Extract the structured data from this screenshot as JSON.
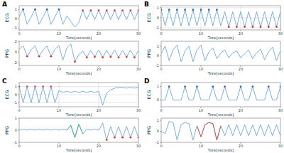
{
  "chart_data": [
    {
      "type": "line",
      "title": "A",
      "ylabel": "ECG",
      "xlabel": "Time[seconds]",
      "x": [
        0,
        1,
        2,
        3,
        4,
        5,
        6,
        7,
        8,
        9,
        10,
        11,
        12,
        13,
        14,
        15,
        16,
        17,
        18,
        19,
        20,
        21,
        22,
        23,
        24,
        25,
        26,
        27,
        28,
        29,
        30
      ],
      "xlim": [
        0,
        30
      ],
      "xticks": [
        0,
        10,
        20,
        30
      ],
      "ylim": [
        -1.2,
        1.4
      ],
      "yticks": [
        -1,
        0,
        1
      ],
      "grid": false,
      "series": [
        {
          "type": "line",
          "color": "#5b9bd5",
          "values": [
            0.2,
            1.0,
            -0.6,
            0.2,
            1.0,
            -0.6,
            0.2,
            1.0,
            -0.6,
            0.2,
            1.0,
            -0.6,
            0.3,
            -0.3,
            -0.9,
            -0.4,
            0.9,
            -0.1,
            0.9,
            -0.1,
            0.9,
            -0.1,
            0.9,
            -0.1,
            0.9,
            -0.1,
            0.9,
            -0.1,
            0.9,
            -0.1,
            0.9
          ]
        },
        {
          "type": "scatter",
          "marker": "circle",
          "color": "#2e6fb5",
          "values": [
            null,
            1.0,
            null,
            null,
            1.0,
            null,
            null,
            1.0,
            null,
            null,
            1.0,
            null,
            null,
            null,
            null,
            null,
            null,
            null,
            null,
            null,
            null,
            null,
            null,
            null,
            null,
            null,
            null,
            null,
            null,
            null,
            null
          ]
        },
        {
          "type": "scatter",
          "marker": "circle",
          "color": "#e8342a",
          "values": [
            null,
            null,
            null,
            null,
            null,
            null,
            null,
            null,
            null,
            null,
            null,
            null,
            null,
            null,
            null,
            null,
            0.9,
            null,
            0.9,
            null,
            0.9,
            null,
            0.9,
            null,
            0.9,
            null,
            0.9,
            null,
            0.9,
            null,
            0.9
          ]
        }
      ]
    },
    {
      "type": "line",
      "ylabel": "PPG",
      "xlabel": "Time[seconds]",
      "x": [
        0,
        1,
        2,
        3,
        4,
        5,
        6,
        7,
        8,
        9,
        10,
        11,
        12,
        13,
        14,
        15,
        16,
        17,
        18,
        19,
        20,
        21,
        22,
        23,
        24,
        25,
        26,
        27,
        28,
        29,
        30
      ],
      "xlim": [
        0,
        30
      ],
      "xticks": [
        0,
        10,
        20,
        30
      ],
      "ylim": [
        -2.5,
        2
      ],
      "yticks": [
        -2,
        0,
        2
      ],
      "grid": false,
      "series": [
        {
          "type": "line",
          "color": "#5b9bd5",
          "values": [
            0.5,
            1.2,
            -0.8,
            0.4,
            1.2,
            -0.8,
            0.4,
            1.1,
            -0.8,
            0.5,
            1.2,
            -1.5,
            0.8,
            1.5,
            -1.8,
            -0.5,
            0.2,
            -1.0,
            0.3,
            -0.9,
            0.4,
            -1.0,
            0.3,
            -0.9,
            0.4,
            -1.0,
            0.3,
            -0.9,
            0.4,
            -1.0,
            0.3
          ]
        },
        {
          "type": "scatter",
          "marker": "circle",
          "color": "#e8342a",
          "values": [
            null,
            null,
            -0.8,
            null,
            null,
            -0.8,
            null,
            null,
            -0.8,
            null,
            null,
            null,
            null,
            null,
            -1.8,
            null,
            null,
            -1.0,
            null,
            -0.9,
            null,
            -1.0,
            null,
            -0.9,
            null,
            -1.0,
            null,
            -0.9,
            null,
            -1.0,
            null
          ]
        }
      ]
    },
    {
      "type": "line",
      "title": "B",
      "ylabel": "ECG",
      "xlabel": "Time[seconds]",
      "x": [
        0,
        1,
        2,
        3,
        4,
        5,
        6,
        7,
        8,
        9,
        10,
        11,
        12,
        13,
        14,
        15,
        16,
        17,
        18,
        19,
        20,
        21,
        22,
        23,
        24,
        25,
        26,
        27,
        28,
        29,
        30
      ],
      "xlim": [
        0,
        30
      ],
      "xticks": [
        0,
        10,
        20,
        30
      ],
      "ylim": [
        -1.2,
        1.2
      ],
      "yticks": [
        -1,
        0,
        1
      ],
      "grid": true,
      "series": [
        {
          "type": "line",
          "color": "#5b9bd5",
          "values": [
            0.8,
            -0.8,
            0.8,
            -0.8,
            0.8,
            -0.8,
            0.8,
            -0.8,
            0.8,
            -0.8,
            0.8,
            -0.8,
            0.8,
            -0.8,
            0.8,
            -0.8,
            0.6,
            -0.9,
            0.6,
            -0.9,
            0.6,
            -0.9,
            0.6,
            -0.9,
            0.6,
            -0.9,
            0.6,
            -0.9,
            0.6,
            -0.9,
            0.6
          ]
        },
        {
          "type": "scatter",
          "marker": "circle",
          "color": "#2e6fb5",
          "values": [
            0.8,
            null,
            0.8,
            null,
            0.8,
            null,
            0.8,
            null,
            0.8,
            null,
            0.8,
            null,
            0.8,
            null,
            0.8,
            null,
            null,
            null,
            null,
            null,
            null,
            null,
            null,
            null,
            null,
            null,
            null,
            null,
            null,
            null,
            null
          ]
        },
        {
          "type": "scatter",
          "marker": "circle",
          "color": "#e8342a",
          "values": [
            null,
            null,
            null,
            null,
            null,
            null,
            null,
            null,
            null,
            null,
            null,
            null,
            null,
            null,
            null,
            null,
            null,
            -0.9,
            null,
            -0.9,
            null,
            -0.9,
            null,
            -0.9,
            null,
            -0.9,
            null,
            -0.9,
            null,
            -0.9,
            null
          ]
        }
      ]
    },
    {
      "type": "line",
      "ylabel": "PPG",
      "xlabel": "Time[seconds]",
      "x": [
        0,
        1,
        2,
        3,
        4,
        5,
        6,
        7,
        8,
        9,
        10,
        11,
        12,
        13,
        14,
        15,
        16,
        17,
        18,
        19,
        20,
        21,
        22,
        23,
        24,
        25,
        26,
        27,
        28,
        29,
        30
      ],
      "xlim": [
        0,
        30
      ],
      "xticks": [
        0,
        10,
        20,
        30
      ],
      "ylim": [
        -1,
        1.5
      ],
      "yticks": [
        -1,
        0,
        1
      ],
      "grid": false,
      "series": [
        {
          "type": "line",
          "color": "#5b9bd5",
          "values": [
            0.2,
            1.0,
            -0.5,
            0.6,
            1.1,
            -0.6,
            0.5,
            1.0,
            -0.6,
            0.6,
            1.1,
            -0.5,
            0.4,
            0.8,
            -0.3,
            0.3,
            0.6,
            -0.2,
            0.3,
            0.5,
            -0.2,
            0.2,
            0.6,
            -0.3,
            0.3,
            0.7,
            -0.4,
            0.4,
            0.9,
            -0.5,
            0.5
          ]
        }
      ]
    },
    {
      "type": "line",
      "title": "C",
      "ylabel": "ECG",
      "xlabel": "Time[seconds]",
      "x": [
        0,
        1,
        2,
        3,
        4,
        5,
        6,
        7,
        8,
        9,
        10,
        11,
        12,
        13,
        14,
        15,
        16,
        17,
        18,
        19,
        20,
        21,
        22,
        23,
        24,
        25,
        26,
        27,
        28,
        29,
        30
      ],
      "xlim": [
        0,
        30
      ],
      "xticks": [
        0,
        10,
        20,
        30
      ],
      "ylim": [
        -1.5,
        1.5
      ],
      "yticks": [
        -1,
        0,
        1
      ],
      "grid": true,
      "series": [
        {
          "type": "line",
          "color": "#5b9bd5",
          "values": [
            1.0,
            -1.0,
            1.0,
            -1.0,
            1.0,
            -1.0,
            1.0,
            -1.0,
            1.0,
            -1.0,
            0.5,
            0.3,
            0.4,
            0.3,
            0.4,
            0.3,
            0.4,
            0.3,
            0.4,
            0.3,
            0.4,
            -1.3,
            0.2,
            0.6,
            0.8,
            0.9,
            0.9,
            0.8,
            0.9,
            0.8,
            0.9
          ]
        },
        {
          "type": "scatter",
          "marker": "circle",
          "color": "#e8487a",
          "values": [
            1.0,
            null,
            1.0,
            null,
            1.0,
            null,
            1.0,
            null,
            1.0,
            null,
            null,
            null,
            null,
            null,
            null,
            null,
            null,
            null,
            null,
            null,
            null,
            null,
            null,
            null,
            null,
            null,
            null,
            null,
            null,
            null,
            null
          ]
        }
      ]
    },
    {
      "type": "line",
      "ylabel": "PPG",
      "xlabel": "Time[seconds]",
      "x": [
        0,
        1,
        2,
        3,
        4,
        5,
        6,
        7,
        8,
        9,
        10,
        11,
        12,
        13,
        14,
        15,
        16,
        17,
        18,
        19,
        20,
        21,
        22,
        23,
        24,
        25,
        26,
        27,
        28,
        29,
        30
      ],
      "xlim": [
        0,
        30
      ],
      "xticks": [
        0,
        10,
        20,
        30
      ],
      "ylim": [
        -1,
        1
      ],
      "yticks": [
        -1,
        0,
        1
      ],
      "grid": false,
      "series": [
        {
          "type": "line",
          "color": "#5b9bd5",
          "values": [
            0.0,
            0.1,
            0.0,
            0.1,
            0.0,
            0.1,
            0.0,
            0.1,
            0.0,
            0.1,
            0.0,
            0.1,
            0.0,
            0.4,
            -0.6,
            0.5,
            -0.3,
            0.1,
            0.0,
            0.1,
            0.0,
            0.6,
            -0.8,
            0.3,
            -0.6,
            0.3,
            -0.6,
            0.3,
            -0.6,
            0.3,
            -0.6
          ]
        },
        {
          "type": "line",
          "color": "#3cb371",
          "values": [
            null,
            null,
            null,
            null,
            null,
            null,
            null,
            null,
            null,
            null,
            null,
            null,
            0.0,
            0.4,
            -0.6,
            0.5,
            -0.3,
            null,
            null,
            null,
            null,
            null,
            null,
            null,
            null,
            null,
            null,
            null,
            null,
            null,
            null
          ]
        },
        {
          "type": "scatter",
          "marker": "circle",
          "color": "#e8342a",
          "values": [
            null,
            null,
            null,
            null,
            null,
            null,
            null,
            null,
            null,
            null,
            null,
            null,
            null,
            null,
            null,
            null,
            null,
            null,
            null,
            null,
            null,
            null,
            -0.8,
            null,
            -0.6,
            null,
            -0.6,
            null,
            -0.6,
            null,
            -0.6
          ]
        }
      ]
    },
    {
      "type": "line",
      "title": "D",
      "ylabel": "ECG",
      "xlabel": "Time[seconds]",
      "x": [
        0,
        1,
        2,
        3,
        4,
        5,
        6,
        7,
        8,
        9,
        10,
        11,
        12,
        13,
        14,
        15,
        16,
        17,
        18,
        19,
        20,
        21,
        22,
        23,
        24,
        25,
        26,
        27,
        28,
        29,
        30
      ],
      "xlim": [
        0,
        30
      ],
      "xticks": [
        0,
        10,
        20,
        30
      ],
      "ylim": [
        -0.5,
        1.3
      ],
      "yticks": [
        0,
        1
      ],
      "grid": false,
      "series": [
        {
          "type": "line",
          "color": "#5b9bd5",
          "values": [
            0,
            0,
            1.0,
            0,
            0,
            0,
            1.0,
            0,
            0,
            1.0,
            0,
            0,
            0,
            1.0,
            0,
            0,
            1.0,
            0,
            0,
            0,
            1.0,
            0,
            0,
            1.0,
            0,
            0,
            0,
            1.0,
            0,
            0,
            1.0
          ]
        },
        {
          "type": "scatter",
          "marker": "circle",
          "color": "#2e6fb5",
          "values": [
            null,
            null,
            1.0,
            null,
            null,
            null,
            1.0,
            null,
            null,
            1.0,
            null,
            null,
            null,
            1.0,
            null,
            null,
            1.0,
            null,
            null,
            null,
            1.0,
            null,
            null,
            1.0,
            null,
            null,
            null,
            1.0,
            null,
            null,
            1.0
          ]
        }
      ]
    },
    {
      "type": "line",
      "ylabel": "PPG",
      "xlabel": "Time[seconds]",
      "x": [
        0,
        1,
        2,
        3,
        4,
        5,
        6,
        7,
        8,
        9,
        10,
        11,
        12,
        13,
        14,
        15,
        16,
        17,
        18,
        19,
        20,
        21,
        22,
        23,
        24,
        25,
        26,
        27,
        28,
        29,
        30
      ],
      "xlim": [
        0,
        30
      ],
      "xticks": [
        0,
        10,
        20,
        30
      ],
      "ylim": [
        -1,
        1.2
      ],
      "yticks": [
        -1,
        0,
        1
      ],
      "grid": false,
      "series": [
        {
          "type": "line",
          "color": "#5b9bd5",
          "values": [
            0.0,
            -0.2,
            0.9,
            0.8,
            -0.8,
            0.6,
            0.8,
            0.7,
            -0.8,
            0.5,
            -0.5,
            0.6,
            0.8,
            0.7,
            -0.8,
            0.5,
            -0.4,
            0.6,
            -0.4,
            0.6,
            -0.4,
            0.6,
            -0.4,
            0.6,
            -0.4,
            0.6,
            -0.4,
            0.6,
            -0.4,
            0.6,
            -0.4
          ]
        },
        {
          "type": "line",
          "color": "#e8342a",
          "values": [
            null,
            null,
            null,
            null,
            null,
            null,
            null,
            null,
            null,
            0.5,
            -0.5,
            0.6,
            0.8,
            0.7,
            -0.8,
            0.5,
            null,
            null,
            null,
            null,
            null,
            null,
            null,
            null,
            null,
            null,
            null,
            null,
            null,
            null,
            null
          ]
        }
      ]
    }
  ]
}
